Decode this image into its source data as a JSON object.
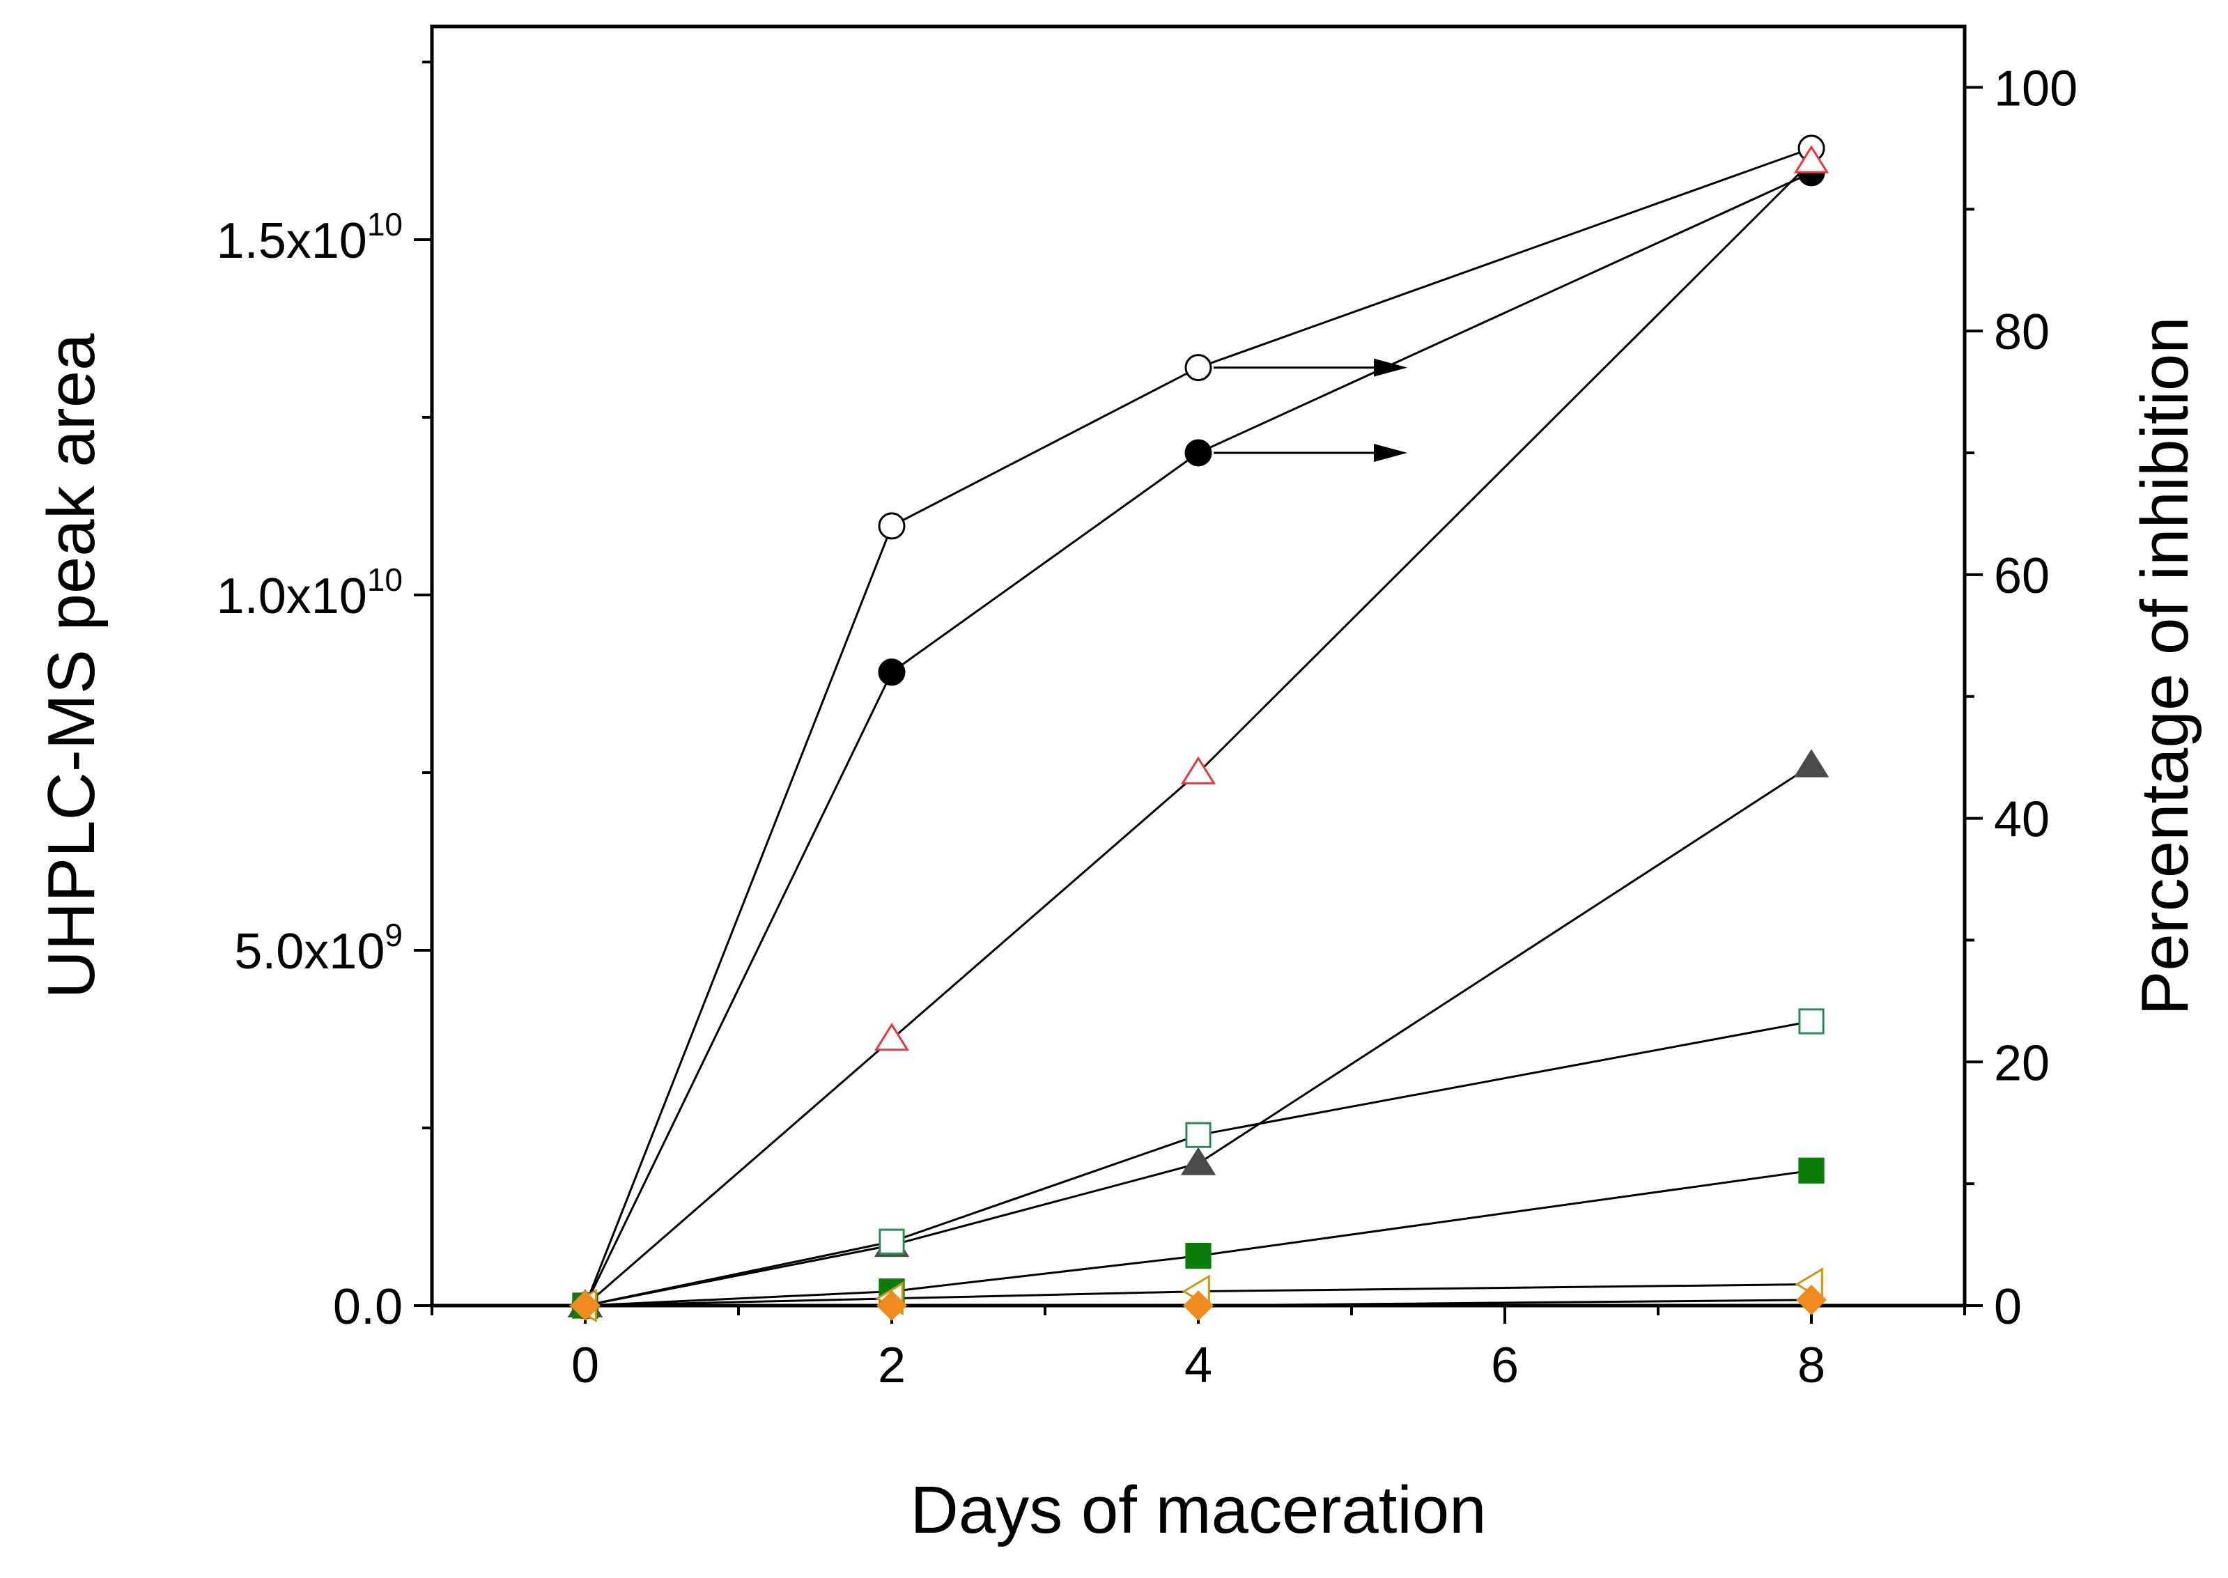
{
  "chart_data": {
    "type": "line",
    "title": "",
    "xlabel": "Days of maceration",
    "ylabel_left": "UHPLC-MS peak area",
    "ylabel_right": "Percentage of inhibition",
    "x_ticks": [
      "0",
      "2",
      "4",
      "6",
      "8"
    ],
    "x_ticks_shown": [
      0,
      2,
      4,
      6,
      8
    ],
    "xlim": [
      -1,
      9
    ],
    "ylim_left": [
      0,
      18000000000
    ],
    "ylim_right": [
      0,
      105
    ],
    "left_ticks": [
      {
        "value": 0,
        "label_main": "0.0",
        "label_sup": ""
      },
      {
        "value": 5000000000,
        "label_main": "5.0x10",
        "label_sup": "9"
      },
      {
        "value": 10000000000,
        "label_main": "1.0x10",
        "label_sup": "10"
      },
      {
        "value": 15000000000,
        "label_main": "1.5x10",
        "label_sup": "10"
      }
    ],
    "right_ticks": [
      "0",
      "20",
      "40",
      "60",
      "80",
      "100"
    ],
    "right_tick_values": [
      0,
      20,
      40,
      60,
      80,
      100
    ],
    "series": [
      {
        "name": "open-circle-inhibition",
        "axis": "right",
        "marker": "circle-open",
        "color": "#000000",
        "x": [
          0,
          2,
          4,
          8
        ],
        "values": [
          0,
          64,
          77,
          95
        ],
        "arrow_at_x": 4
      },
      {
        "name": "filled-circle-inhibition",
        "axis": "right",
        "marker": "circle-filled",
        "color": "#000000",
        "x": [
          0,
          2,
          4,
          8
        ],
        "values": [
          0,
          52,
          70,
          93
        ],
        "arrow_at_x": 4
      },
      {
        "name": "red-open-triangle",
        "axis": "left",
        "marker": "triangle-open",
        "color": "#e8383b",
        "x": [
          0,
          2,
          4,
          8
        ],
        "values": [
          0,
          3750000000,
          7500000000,
          16100000000
        ]
      },
      {
        "name": "gray-filled-triangle",
        "axis": "left",
        "marker": "triangle-filled",
        "color": "#4a4a4a",
        "x": [
          0,
          2,
          4,
          8
        ],
        "values": [
          0,
          850000000,
          2000000000,
          7600000000
        ]
      },
      {
        "name": "green-open-square",
        "axis": "left",
        "marker": "square-open",
        "color": "#2e8b57",
        "x": [
          0,
          2,
          4,
          8
        ],
        "values": [
          0,
          900000000,
          2400000000,
          4000000000
        ]
      },
      {
        "name": "green-filled-square",
        "axis": "left",
        "marker": "square-filled",
        "color": "#0a7d0a",
        "x": [
          0,
          2,
          4,
          8
        ],
        "values": [
          0,
          200000000,
          700000000,
          1900000000
        ]
      },
      {
        "name": "orange-open-left-triangle",
        "axis": "left",
        "marker": "tri-left-open",
        "color": "#c8961e",
        "x": [
          0,
          2,
          4,
          8
        ],
        "values": [
          0,
          100000000,
          200000000,
          300000000
        ]
      },
      {
        "name": "orange-filled-diamond",
        "axis": "left",
        "marker": "diamond-filled",
        "color": "#f08c1e",
        "x": [
          0,
          2,
          4,
          8
        ],
        "values": [
          0,
          0,
          0,
          80000000
        ]
      }
    ]
  }
}
